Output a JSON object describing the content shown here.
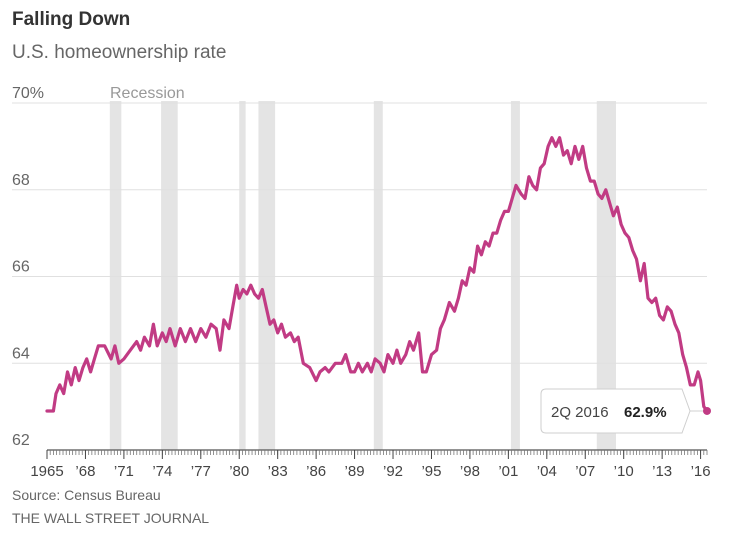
{
  "chart_data": {
    "type": "line",
    "title": "Falling Down",
    "subtitle": "U.S. homeownership rate",
    "ylim": [
      62,
      70
    ],
    "xlim": [
      1965,
      2016.5
    ],
    "yticks": [
      {
        "value": 70,
        "label": "70%"
      },
      {
        "value": 68,
        "label": "68"
      },
      {
        "value": 66,
        "label": "66"
      },
      {
        "value": 64,
        "label": "64"
      },
      {
        "value": 62,
        "label": "62"
      }
    ],
    "xticks": [
      {
        "value": 1965,
        "label": "1965"
      },
      {
        "value": 1968,
        "label": "’68"
      },
      {
        "value": 1971,
        "label": "’71"
      },
      {
        "value": 1974,
        "label": "’74"
      },
      {
        "value": 1977,
        "label": "’77"
      },
      {
        "value": 1980,
        "label": "’80"
      },
      {
        "value": 1983,
        "label": "’83"
      },
      {
        "value": 1986,
        "label": "’86"
      },
      {
        "value": 1989,
        "label": "’89"
      },
      {
        "value": 1992,
        "label": "’92"
      },
      {
        "value": 1995,
        "label": "’95"
      },
      {
        "value": 1998,
        "label": "’98"
      },
      {
        "value": 2001,
        "label": "’01"
      },
      {
        "value": 2004,
        "label": "’04"
      },
      {
        "value": 2007,
        "label": "’07"
      },
      {
        "value": 2010,
        "label": "’10"
      },
      {
        "value": 2013,
        "label": "’13"
      },
      {
        "value": 2016,
        "label": "’16"
      }
    ],
    "recession_label": "Recession",
    "recessions": [
      [
        1969.9,
        1970.8
      ],
      [
        1973.9,
        1975.2
      ],
      [
        1980.0,
        1980.5
      ],
      [
        1981.5,
        1982.8
      ],
      [
        1990.5,
        1991.2
      ],
      [
        2001.2,
        2001.9
      ],
      [
        2007.9,
        2009.4
      ]
    ],
    "series": [
      {
        "name": "U.S. homeownership rate",
        "color": "#c13b84",
        "points": [
          [
            1965.0,
            62.9
          ],
          [
            1965.5,
            62.9
          ],
          [
            1965.7,
            63.3
          ],
          [
            1966.0,
            63.5
          ],
          [
            1966.3,
            63.3
          ],
          [
            1966.6,
            63.8
          ],
          [
            1966.9,
            63.5
          ],
          [
            1967.2,
            63.9
          ],
          [
            1967.5,
            63.6
          ],
          [
            1967.8,
            63.9
          ],
          [
            1968.1,
            64.1
          ],
          [
            1968.4,
            63.8
          ],
          [
            1968.7,
            64.1
          ],
          [
            1969.0,
            64.4
          ],
          [
            1969.5,
            64.4
          ],
          [
            1970.0,
            64.1
          ],
          [
            1970.3,
            64.4
          ],
          [
            1970.6,
            64.0
          ],
          [
            1971.0,
            64.1
          ],
          [
            1971.5,
            64.3
          ],
          [
            1972.0,
            64.5
          ],
          [
            1972.3,
            64.3
          ],
          [
            1972.6,
            64.6
          ],
          [
            1973.0,
            64.4
          ],
          [
            1973.3,
            64.9
          ],
          [
            1973.6,
            64.4
          ],
          [
            1974.0,
            64.7
          ],
          [
            1974.3,
            64.5
          ],
          [
            1974.6,
            64.8
          ],
          [
            1975.0,
            64.4
          ],
          [
            1975.4,
            64.8
          ],
          [
            1975.8,
            64.5
          ],
          [
            1976.2,
            64.8
          ],
          [
            1976.6,
            64.5
          ],
          [
            1977.0,
            64.8
          ],
          [
            1977.4,
            64.6
          ],
          [
            1977.8,
            64.9
          ],
          [
            1978.2,
            64.8
          ],
          [
            1978.5,
            64.3
          ],
          [
            1978.8,
            65.0
          ],
          [
            1979.2,
            64.8
          ],
          [
            1979.5,
            65.3
          ],
          [
            1979.8,
            65.8
          ],
          [
            1980.0,
            65.5
          ],
          [
            1980.3,
            65.7
          ],
          [
            1980.6,
            65.6
          ],
          [
            1980.9,
            65.8
          ],
          [
            1981.2,
            65.6
          ],
          [
            1981.5,
            65.5
          ],
          [
            1981.8,
            65.7
          ],
          [
            1982.1,
            65.3
          ],
          [
            1982.4,
            64.9
          ],
          [
            1982.7,
            65.0
          ],
          [
            1983.0,
            64.7
          ],
          [
            1983.3,
            64.9
          ],
          [
            1983.6,
            64.6
          ],
          [
            1984.0,
            64.7
          ],
          [
            1984.3,
            64.5
          ],
          [
            1984.6,
            64.6
          ],
          [
            1985.0,
            64.0
          ],
          [
            1985.5,
            63.9
          ],
          [
            1986.0,
            63.6
          ],
          [
            1986.3,
            63.8
          ],
          [
            1986.7,
            63.9
          ],
          [
            1987.0,
            63.8
          ],
          [
            1987.5,
            64.0
          ],
          [
            1988.0,
            64.0
          ],
          [
            1988.3,
            64.2
          ],
          [
            1988.7,
            63.8
          ],
          [
            1989.0,
            63.8
          ],
          [
            1989.3,
            64.0
          ],
          [
            1989.6,
            63.8
          ],
          [
            1990.0,
            64.0
          ],
          [
            1990.3,
            63.8
          ],
          [
            1990.6,
            64.1
          ],
          [
            1991.0,
            64.0
          ],
          [
            1991.3,
            63.8
          ],
          [
            1991.6,
            64.2
          ],
          [
            1992.0,
            64.0
          ],
          [
            1992.3,
            64.3
          ],
          [
            1992.6,
            64.0
          ],
          [
            1993.0,
            64.2
          ],
          [
            1993.3,
            64.5
          ],
          [
            1993.6,
            64.3
          ],
          [
            1994.0,
            64.7
          ],
          [
            1994.3,
            63.8
          ],
          [
            1994.6,
            63.8
          ],
          [
            1995.0,
            64.2
          ],
          [
            1995.4,
            64.3
          ],
          [
            1995.7,
            64.8
          ],
          [
            1996.0,
            65.0
          ],
          [
            1996.4,
            65.4
          ],
          [
            1996.8,
            65.2
          ],
          [
            1997.1,
            65.5
          ],
          [
            1997.4,
            65.9
          ],
          [
            1997.7,
            65.8
          ],
          [
            1998.0,
            66.2
          ],
          [
            1998.3,
            66.1
          ],
          [
            1998.6,
            66.7
          ],
          [
            1998.9,
            66.5
          ],
          [
            1999.2,
            66.8
          ],
          [
            1999.5,
            66.7
          ],
          [
            1999.8,
            67.0
          ],
          [
            2000.1,
            67.0
          ],
          [
            2000.4,
            67.3
          ],
          [
            2000.7,
            67.5
          ],
          [
            2001.0,
            67.5
          ],
          [
            2001.3,
            67.8
          ],
          [
            2001.6,
            68.1
          ],
          [
            2002.0,
            67.9
          ],
          [
            2002.3,
            67.8
          ],
          [
            2002.6,
            68.3
          ],
          [
            2002.9,
            68.1
          ],
          [
            2003.2,
            68.0
          ],
          [
            2003.5,
            68.5
          ],
          [
            2003.8,
            68.6
          ],
          [
            2004.1,
            69.0
          ],
          [
            2004.4,
            69.2
          ],
          [
            2004.7,
            69.0
          ],
          [
            2005.0,
            69.2
          ],
          [
            2005.3,
            68.8
          ],
          [
            2005.6,
            68.9
          ],
          [
            2005.9,
            68.6
          ],
          [
            2006.2,
            69.0
          ],
          [
            2006.5,
            68.7
          ],
          [
            2006.8,
            69.0
          ],
          [
            2007.1,
            68.5
          ],
          [
            2007.4,
            68.2
          ],
          [
            2007.7,
            68.2
          ],
          [
            2008.0,
            67.9
          ],
          [
            2008.3,
            67.8
          ],
          [
            2008.6,
            68.0
          ],
          [
            2008.9,
            67.7
          ],
          [
            2009.2,
            67.4
          ],
          [
            2009.5,
            67.6
          ],
          [
            2009.8,
            67.2
          ],
          [
            2010.1,
            67.0
          ],
          [
            2010.4,
            66.9
          ],
          [
            2010.7,
            66.6
          ],
          [
            2011.0,
            66.4
          ],
          [
            2011.3,
            65.9
          ],
          [
            2011.6,
            66.3
          ],
          [
            2011.9,
            65.5
          ],
          [
            2012.2,
            65.4
          ],
          [
            2012.5,
            65.5
          ],
          [
            2012.8,
            65.1
          ],
          [
            2013.1,
            65.0
          ],
          [
            2013.4,
            65.3
          ],
          [
            2013.7,
            65.2
          ],
          [
            2014.0,
            64.9
          ],
          [
            2014.3,
            64.7
          ],
          [
            2014.6,
            64.2
          ],
          [
            2014.9,
            63.9
          ],
          [
            2015.2,
            63.5
          ],
          [
            2015.5,
            63.5
          ],
          [
            2015.8,
            63.8
          ],
          [
            2016.0,
            63.6
          ],
          [
            2016.25,
            63.0
          ],
          [
            2016.5,
            62.9
          ]
        ]
      }
    ],
    "annotation": {
      "label": "2Q 2016",
      "value": "62.9%",
      "x": 2016.5,
      "y": 62.9
    }
  },
  "footer": {
    "source": "Source: Census Bureau",
    "publisher": "THE WALL STREET JOURNAL"
  }
}
